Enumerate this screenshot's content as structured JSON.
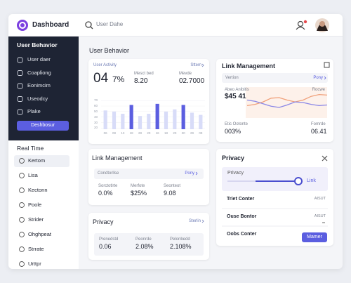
{
  "header": {
    "title": "Dashboard",
    "search": "User Dahe"
  },
  "sidebar": {
    "section_title": "User Behavior",
    "items": [
      "User daer",
      "Coapliong",
      "Eonimcim",
      "Useodcy",
      "Plake"
    ],
    "button": "Deshbosur",
    "realtime_title": "Real Time",
    "realtime_items": [
      "Kertom",
      "Lisa",
      "Kectonn",
      "Poole",
      "Strider",
      "Ohghpeat",
      "Strrate",
      "Urttpr"
    ]
  },
  "main": {
    "title": "User Behavior"
  },
  "activity_card": {
    "label": "User Activity",
    "link": "Sttem",
    "big_value": "04",
    "big_suffix": "7%",
    "stats": [
      {
        "label": "Mesct bed",
        "value": "8.20"
      },
      {
        "label": "Mevde",
        "value": "02.7000"
      }
    ],
    "chart": {
      "type": "bar",
      "ylim": [
        18,
        74
      ],
      "yticks": [
        70,
        60,
        50,
        40,
        30,
        20
      ],
      "categories": [
        "06",
        "08",
        "13",
        "18",
        "28",
        "20",
        "16",
        "18",
        "20",
        "30",
        "29",
        "09"
      ],
      "values": [
        52,
        50,
        46,
        62,
        42,
        46,
        64,
        50,
        54,
        62,
        48,
        44
      ],
      "colors": [
        "#d8dcf8",
        "#d8dcf8",
        "#d8dcf8",
        "#5b5ee0",
        "#d8dcf8",
        "#d8dcf8",
        "#5b5ee0",
        "#d8dcf8",
        "#d8dcf8",
        "#5b5ee0",
        "#d8dcf8",
        "#d8dcf8"
      ]
    }
  },
  "link_card": {
    "title": "Link Management",
    "row_label": "Vertion",
    "row_link": "Pony",
    "stat_label": "Abeo Anibitis",
    "stat_value": "$45 41",
    "chart_label": "Rocwe",
    "chart": {
      "type": "line",
      "ylim": [
        0,
        100
      ],
      "series": [
        {
          "color": "#f0a07a",
          "values": [
            40,
            44,
            52,
            64,
            66,
            58,
            52,
            58,
            70,
            76,
            74
          ]
        },
        {
          "color": "#8a86e6",
          "values": [
            58,
            54,
            46,
            38,
            34,
            42,
            52,
            50,
            44,
            40,
            42
          ]
        }
      ]
    },
    "footer": [
      {
        "label": "Etic Ootonte",
        "value": "003%"
      },
      {
        "label": "Fomrde",
        "value": "06.41"
      }
    ]
  },
  "link_card_2": {
    "title": "Link Management",
    "row_label": "Condtorllse",
    "row_link": "Pony",
    "stats": [
      {
        "label": "Sorctotlrte",
        "value": "0.0%"
      },
      {
        "label": "Merfote",
        "value": "$25%"
      },
      {
        "label": "Seonteot",
        "value": "9.08"
      }
    ]
  },
  "privacy_card": {
    "title": "Privacy",
    "slider_label": "Privacy",
    "slider_link": "Link",
    "rows": [
      {
        "label": "Triet Conter",
        "value": "AISUT"
      },
      {
        "label": "Ouse Bontor",
        "value": "AISUT"
      },
      {
        "label": "Oobs Conter"
      }
    ],
    "button": "Mamer"
  },
  "privacy_card_2": {
    "title": "Privacy",
    "link": "Sterlin",
    "stats": [
      {
        "label": "Prenedstd",
        "value": "0.06"
      },
      {
        "label": "Peonrde",
        "value": "2.08%"
      },
      {
        "label": "Pelonbedd",
        "value": "2.108%"
      }
    ]
  }
}
